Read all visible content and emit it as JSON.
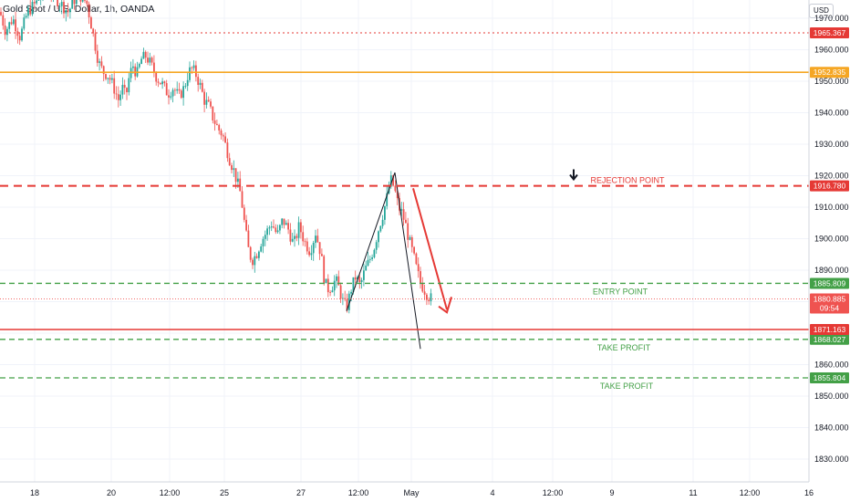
{
  "title": "Gold Spot / U.S. Dollar, 1h, OANDA",
  "currency_label": "USD",
  "chart_data": {
    "type": "candlestick",
    "title": "Gold Spot / U.S. Dollar, 1h, OANDA",
    "ylim": [
      1820,
      1975
    ],
    "y_ticks": [
      1830,
      1840,
      1850,
      1860,
      1870,
      1880,
      1890,
      1900,
      1910,
      1920,
      1930,
      1940,
      1950,
      1960,
      1970
    ],
    "y_tick_labels": [
      "1830.000",
      "1840.000",
      "1850.000",
      "1860.000",
      "1870.000",
      "1880.000",
      "1890.000",
      "1900.000",
      "1910.000",
      "1920.000",
      "1930.000",
      "1940.000",
      "1950.000",
      "1960.000",
      "1970.000"
    ],
    "x_tick_labels": [
      "18",
      "20",
      "12:00",
      "25",
      "27",
      "12:00",
      "May",
      "4",
      "12:00",
      "9",
      "11",
      "12:00",
      "16"
    ],
    "grid": true,
    "up_color": "#26a69a",
    "down_color": "#ef5350",
    "price_path": [
      [
        0,
        1972
      ],
      [
        6,
        1966
      ],
      [
        14,
        1970
      ],
      [
        22,
        1964
      ],
      [
        30,
        1972
      ],
      [
        40,
        1975
      ],
      [
        52,
        1980
      ],
      [
        62,
        1976
      ],
      [
        75,
        1972
      ],
      [
        85,
        1978
      ],
      [
        95,
        1975
      ],
      [
        100,
        1968
      ],
      [
        104,
        1962
      ],
      [
        108,
        1956
      ],
      [
        113,
        1953
      ],
      [
        118,
        1952
      ],
      [
        122,
        1950
      ],
      [
        126,
        1947
      ],
      [
        130,
        1944
      ],
      [
        134,
        1948
      ],
      [
        138,
        1945
      ],
      [
        142,
        1952
      ],
      [
        146,
        1955
      ],
      [
        150,
        1952
      ],
      [
        155,
        1957
      ],
      [
        160,
        1958
      ],
      [
        166,
        1955
      ],
      [
        172,
        1951
      ],
      [
        178,
        1949
      ],
      [
        184,
        1946
      ],
      [
        190,
        1948
      ],
      [
        196,
        1945
      ],
      [
        202,
        1948
      ],
      [
        207,
        1953
      ],
      [
        211,
        1954
      ],
      [
        215,
        1952
      ],
      [
        219,
        1949
      ],
      [
        224,
        1944
      ],
      [
        229,
        1942
      ],
      [
        234,
        1938
      ],
      [
        239,
        1935
      ],
      [
        244,
        1933
      ],
      [
        248,
        1929
      ],
      [
        252,
        1925
      ],
      [
        256,
        1922
      ],
      [
        260,
        1918
      ],
      [
        264,
        1914
      ],
      [
        268,
        1905
      ],
      [
        272,
        1897
      ],
      [
        276,
        1893
      ],
      [
        281,
        1895
      ],
      [
        286,
        1899
      ],
      [
        292,
        1902
      ],
      [
        298,
        1905
      ],
      [
        304,
        1901
      ],
      [
        310,
        1906
      ],
      [
        316,
        1903
      ],
      [
        322,
        1898
      ],
      [
        328,
        1904
      ],
      [
        334,
        1899
      ],
      [
        340,
        1896
      ],
      [
        346,
        1902
      ],
      [
        352,
        1895
      ],
      [
        356,
        1886
      ],
      [
        360,
        1884
      ],
      [
        364,
        1885
      ],
      [
        368,
        1887
      ],
      [
        372,
        1884
      ],
      [
        376,
        1880
      ],
      [
        380,
        1878
      ],
      [
        385,
        1884
      ],
      [
        390,
        1888
      ],
      [
        395,
        1885
      ],
      [
        400,
        1890
      ],
      [
        405,
        1893
      ],
      [
        410,
        1897
      ],
      [
        415,
        1903
      ],
      [
        420,
        1908
      ],
      [
        425,
        1914
      ],
      [
        428,
        1919
      ],
      [
        431,
        1917
      ],
      [
        434,
        1914
      ],
      [
        437,
        1910
      ],
      [
        441,
        1908
      ],
      [
        445,
        1904
      ],
      [
        449,
        1899
      ],
      [
        453,
        1895
      ],
      [
        457,
        1890
      ],
      [
        461,
        1886
      ],
      [
        465,
        1884
      ],
      [
        469,
        1882
      ],
      [
        473,
        1880.9
      ]
    ],
    "horizontal_levels": [
      {
        "label": "REJECTION POINT",
        "value": 1916.78,
        "badge": "1916.780",
        "color": "#e53935",
        "style": "dashed"
      },
      {
        "label": "ENTRY POINT",
        "value": 1885.809,
        "badge": "1885.809",
        "color": "#43a047",
        "style": "dashed"
      },
      {
        "label": "TAKE PROFIT",
        "value": 1868.027,
        "badge": "1868.027",
        "color": "#43a047",
        "style": "dashed"
      },
      {
        "label": "TAKE PROFIT",
        "value": 1855.804,
        "badge": "1855.804",
        "color": "#43a047",
        "style": "dashed"
      },
      {
        "label": "",
        "value": 1965.367,
        "badge": "1965.367",
        "color": "#e53935",
        "style": "dotted"
      },
      {
        "label": "",
        "value": 1952.835,
        "badge": "1952.835",
        "color": "#f5a623",
        "style": "solid"
      },
      {
        "label": "",
        "value": 1871.163,
        "badge": "1871.163",
        "color": "#e53935",
        "style": "solid"
      }
    ],
    "current_price": {
      "value": 1880.885,
      "badge": "1880.885",
      "countdown": "09:54",
      "color": "#ef5350"
    }
  }
}
